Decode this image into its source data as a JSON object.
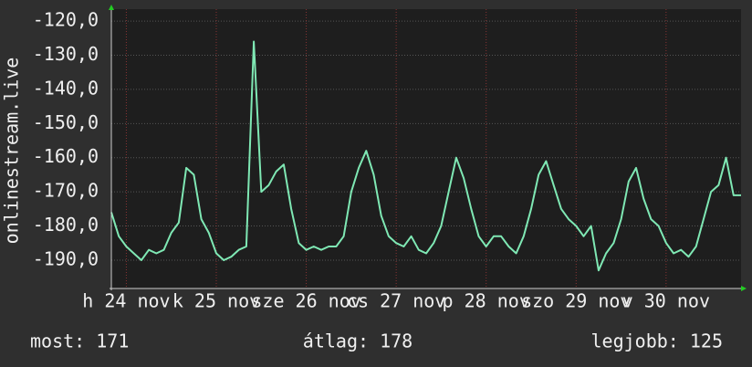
{
  "chart_data": {
    "type": "line",
    "y_label": "onlinestream.live",
    "x": [
      0,
      2,
      4,
      6,
      8,
      10,
      12,
      14,
      16,
      18,
      20,
      22,
      24,
      26,
      28,
      30,
      32,
      34,
      36,
      38,
      40,
      42,
      44,
      46,
      48,
      50,
      52,
      54,
      56,
      58,
      60,
      62,
      64,
      66,
      68,
      70,
      72,
      74,
      76,
      78,
      80,
      82,
      84,
      86,
      88,
      90,
      92,
      94,
      96,
      98,
      100,
      102,
      104,
      106,
      108,
      110,
      112,
      114,
      116,
      118,
      120,
      122,
      124,
      126,
      128,
      130,
      132,
      134,
      136,
      138,
      140,
      142,
      144,
      146,
      148,
      150,
      152,
      154,
      156,
      158,
      160,
      162,
      164,
      166,
      168
    ],
    "series": [
      {
        "color": "#7fe8b4",
        "values": [
          -176,
          -183,
          -186,
          -188,
          -190,
          -187,
          -188,
          -187,
          -182,
          -179,
          -163,
          -165,
          -178,
          -182,
          -188,
          -190,
          -189,
          -187,
          -186,
          -126,
          -170,
          -168,
          -164,
          -162,
          -175,
          -185,
          -187,
          -186,
          -187,
          -186,
          -186,
          -183,
          -170,
          -163,
          -158,
          -165,
          -177,
          -183,
          -185,
          -186,
          -183,
          -187,
          -188,
          -185,
          -180,
          -170,
          -160,
          -166,
          -175,
          -183,
          -186,
          -183,
          -183,
          -186,
          -188,
          -183,
          -175,
          -165,
          -161,
          -168,
          -175,
          -178,
          -180,
          -183,
          -180,
          -193,
          -188,
          -185,
          -178,
          -167,
          -163,
          -172,
          -178,
          -180,
          -185,
          -188,
          -187,
          -189,
          -186,
          -178,
          -170,
          -168,
          -160,
          -171,
          -171
        ]
      }
    ],
    "xlim": [
      0,
      168
    ],
    "xticks": [
      {
        "value": 4,
        "label": "h 24 nov"
      },
      {
        "value": 28,
        "label": "k 25 nov"
      },
      {
        "value": 52,
        "label": "sze 26 nov"
      },
      {
        "value": 76,
        "label": "cs 27 nov"
      },
      {
        "value": 100,
        "label": "p 28 nov"
      },
      {
        "value": 124,
        "label": "szo 29 nov"
      },
      {
        "value": 148,
        "label": "v 30 nov"
      }
    ],
    "ylim": [
      -198.3,
      -116.5
    ],
    "yticks": [
      {
        "value": -120,
        "label": "-120,0"
      },
      {
        "value": -130,
        "label": "-130,0"
      },
      {
        "value": -140,
        "label": "-140,0"
      },
      {
        "value": -150,
        "label": "-150,0"
      },
      {
        "value": -160,
        "label": "-160,0"
      },
      {
        "value": -170,
        "label": "-170,0"
      },
      {
        "value": -180,
        "label": "-180,0"
      },
      {
        "value": -190,
        "label": "-190,0"
      }
    ],
    "grid": true,
    "footer": {
      "current": "most: 171",
      "average": "átlag: 178",
      "best": "legjobb: 125"
    }
  }
}
